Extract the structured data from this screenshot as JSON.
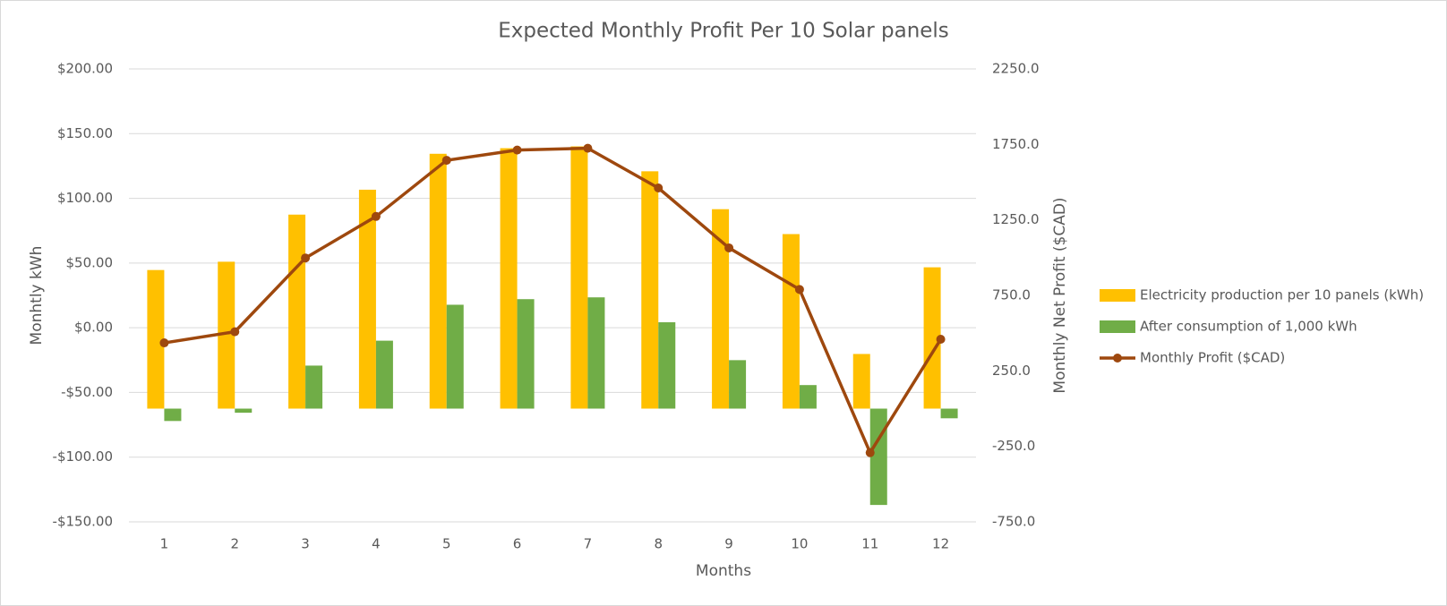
{
  "chart_data": {
    "type": "bar-line",
    "title": "Expected Monthly Profit Per 10 Solar panels",
    "x_label": "Months",
    "y_label": "Monhtly kWh",
    "y2_label": "Monthly Net Profit ($CAD)",
    "categories": [
      "1",
      "2",
      "3",
      "4",
      "5",
      "6",
      "7",
      "8",
      "9",
      "10",
      "11",
      "12"
    ],
    "series": [
      {
        "name": "Electricity production per 10 panels (kWh)",
        "type": "bar",
        "axis": "y2",
        "color": "#FFC000",
        "values": [
          918,
          973,
          1285,
          1450,
          1688,
          1725,
          1737,
          1572,
          1321,
          1156,
          362,
          936
        ]
      },
      {
        "name": "After consumption of 1,000 kWh",
        "type": "bar",
        "axis": "y2",
        "color": "#70AD47",
        "values": [
          -82,
          -27,
          285,
          450,
          688,
          725,
          737,
          572,
          321,
          156,
          -638,
          -64
        ]
      },
      {
        "name": "Monthly Profit ($CAD)",
        "type": "line",
        "axis": "y",
        "color": "#9E480E",
        "values": [
          -11.7,
          -3.1,
          53.9,
          86,
          129.4,
          137.3,
          138.7,
          108,
          61.7,
          29.6,
          -96.5,
          -8.9
        ]
      }
    ],
    "ylim": [
      -150,
      200
    ],
    "yticks": [
      {
        "value": -150,
        "label": "-$150.00"
      },
      {
        "value": -100,
        "label": "-$100.00"
      },
      {
        "value": -50,
        "label": "-$50.00"
      },
      {
        "value": 0,
        "label": "$0.00"
      },
      {
        "value": 50,
        "label": "$50.00"
      },
      {
        "value": 100,
        "label": "$100.00"
      },
      {
        "value": 150,
        "label": "$150.00"
      },
      {
        "value": 200,
        "label": "$200.00"
      }
    ],
    "y2lim": [
      -750,
      2250
    ],
    "y2ticks": [
      {
        "value": -750,
        "label": "-750.0"
      },
      {
        "value": -250,
        "label": "-250.0"
      },
      {
        "value": 250,
        "label": "250.0"
      },
      {
        "value": 750,
        "label": "750.0"
      },
      {
        "value": 1250,
        "label": "1250.0"
      },
      {
        "value": 1750,
        "label": "1750.0"
      },
      {
        "value": 2250,
        "label": "2250.0"
      }
    ],
    "grid": true,
    "legend": "right"
  }
}
